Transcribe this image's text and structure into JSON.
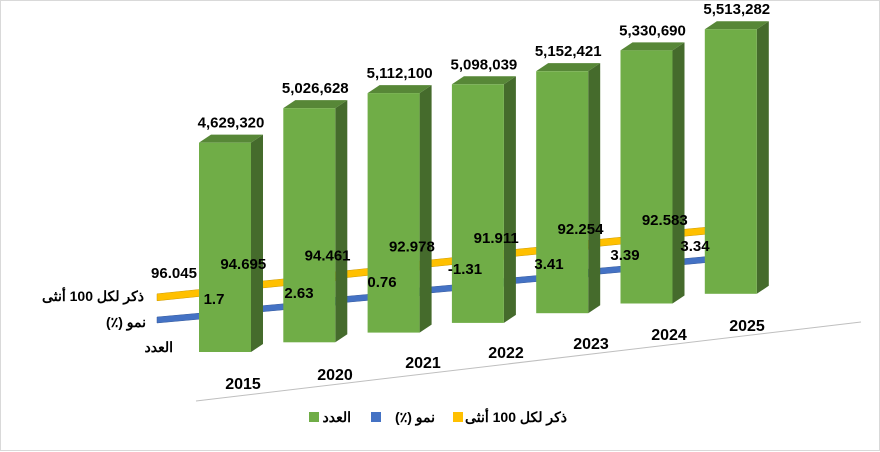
{
  "chart_data": {
    "type": "bar",
    "title": "",
    "categories": [
      "2015",
      "2020",
      "2021",
      "2022",
      "2023",
      "2024",
      "2025"
    ],
    "series": [
      {
        "name": "العدد",
        "kind": "bar",
        "color": "#70ad47",
        "values": [
          4629320,
          5026628,
          5112100,
          5098039,
          5152421,
          5330690,
          5513282
        ],
        "labels": [
          "4,629,320",
          "5,026,628",
          "5,112,100",
          "5,098,039",
          "5,152,421",
          "5,330,690",
          "5,513,282"
        ]
      },
      {
        "name": "نمو (٪)",
        "kind": "ribbon",
        "color": "#4472c4",
        "values": [
          1.7,
          2.63,
          0.76,
          -1.31,
          3.41,
          3.39,
          3.34
        ],
        "labels": [
          "1.7",
          "2.63",
          "0.76",
          "-1.31",
          "3.41",
          "3.39",
          "3.34"
        ]
      },
      {
        "name": "ذكر لكل 100 أنثى",
        "kind": "ribbon",
        "color": "#ffc000",
        "values": [
          96.045,
          94.695,
          94.461,
          92.978,
          91.911,
          92.254,
          92.583
        ],
        "labels": [
          "96.045",
          "94.695",
          "94.461",
          "92.978",
          "91.911",
          "92.254",
          "92.583"
        ]
      }
    ],
    "depth_axis_labels": [
      "ذكر لكل 100 أنثى",
      "نمو (٪)",
      "العدد"
    ],
    "legend": {
      "position": "bottom",
      "items": [
        {
          "name": "العدد",
          "color": "#70ad47"
        },
        {
          "name": "نمو (٪)",
          "color": "#4472c4"
        },
        {
          "name": "ذكر لكل 100 أنثى",
          "color": "#ffc000"
        }
      ]
    },
    "ylim": [
      4000000,
      5600000
    ]
  }
}
